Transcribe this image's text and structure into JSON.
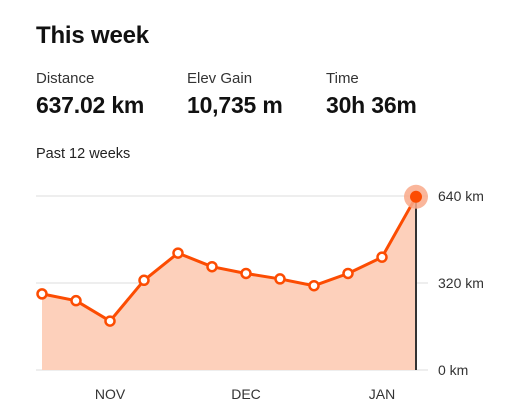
{
  "header": {
    "title": "This week"
  },
  "stats": [
    {
      "label": "Distance",
      "value": "637.02 km"
    },
    {
      "label": "Elev Gain",
      "value": "10,735 m"
    },
    {
      "label": "Time",
      "value": "30h 36m"
    }
  ],
  "period_label": "Past 12 weeks",
  "colors": {
    "accent": "#fc4c02",
    "fill": "#fdd0bb",
    "highlight": "#f9a98a",
    "grid": "#dddddd",
    "cursor": "#333333"
  },
  "chart_data": {
    "type": "area",
    "title": "",
    "xlabel": "",
    "ylabel": "",
    "ylim": [
      0,
      640
    ],
    "yticks": [
      {
        "value": 0,
        "label": "0 km"
      },
      {
        "value": 320,
        "label": "320 km"
      },
      {
        "value": 640,
        "label": "640 km"
      }
    ],
    "xticks": [
      {
        "index": 2,
        "label": "NOV"
      },
      {
        "index": 6,
        "label": "DEC"
      },
      {
        "index": 10,
        "label": "JAN"
      }
    ],
    "grid": true,
    "series": [
      {
        "values": [
          280,
          255,
          180,
          330,
          430,
          380,
          355,
          335,
          310,
          355,
          415,
          637.02
        ],
        "highlight_index": 11
      }
    ]
  }
}
